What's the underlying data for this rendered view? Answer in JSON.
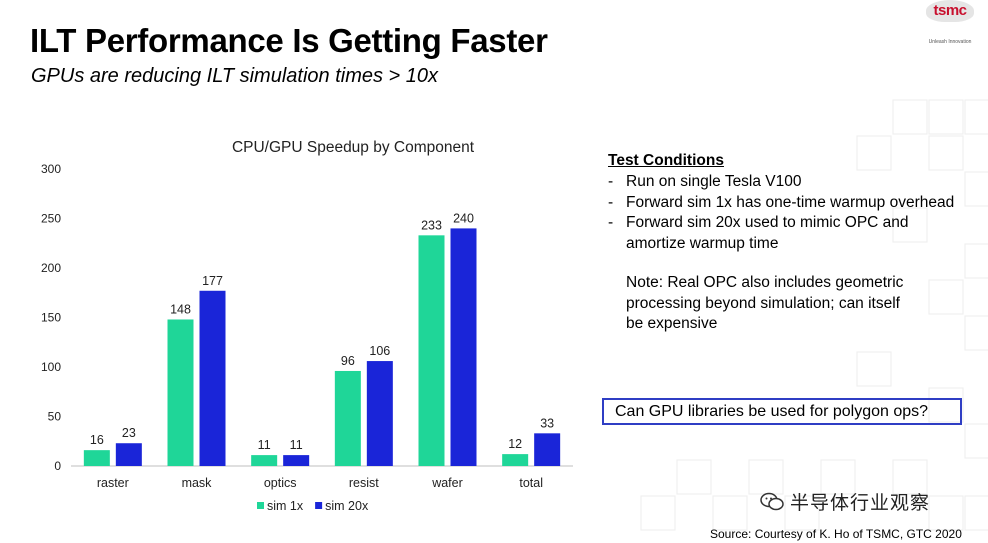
{
  "slide": {
    "title": "ILT Performance Is Getting Faster",
    "subtitle": "GPUs are reducing ILT simulation times > 10x",
    "logo_text": "tsmc",
    "logo_tagline": "Unleash Innovation"
  },
  "chart_data": {
    "type": "bar",
    "title": "CPU/GPU Speedup by Component",
    "xlabel": "",
    "ylabel": "",
    "categories": [
      "raster",
      "mask",
      "optics",
      "resist",
      "wafer",
      "total"
    ],
    "series": [
      {
        "name": "sim 1x",
        "values": [
          16,
          148,
          11,
          96,
          233,
          12
        ],
        "color": "#1fd698"
      },
      {
        "name": "sim 20x",
        "values": [
          23,
          177,
          11,
          106,
          240,
          33
        ],
        "color": "#1a25d8"
      }
    ],
    "ylim": [
      0,
      300
    ],
    "yticks": [
      0,
      50,
      100,
      150,
      200,
      250,
      300
    ],
    "grid": false,
    "legend": "bottom-center",
    "data_labels": true
  },
  "panel": {
    "heading": "Test Conditions",
    "conditions": [
      "Run on single Tesla V100",
      "Forward sim 1x has one-time warmup overhead",
      "Forward sim 20x used to mimic OPC and amortize warmup time"
    ],
    "dash": "-",
    "note": "Note: Real OPC also includes geometric processing  beyond simulation; can itself be expensive"
  },
  "callout": {
    "text": "Can GPU libraries be used for polygon ops?",
    "border_color": "#2f3ec4"
  },
  "watermark": {
    "text": "半导体行业观察",
    "icon": "wechat-icon"
  },
  "source": {
    "text": "Source:  Courtesy of K. Ho of TSMC, GTC 2020"
  }
}
